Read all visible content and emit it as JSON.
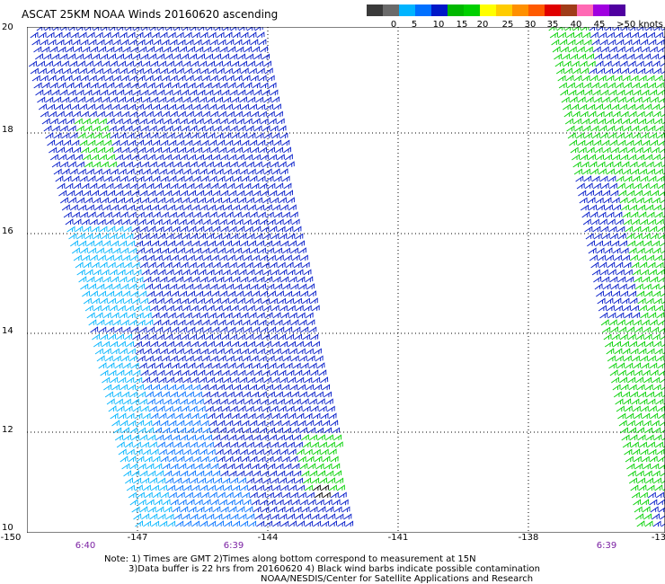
{
  "title": "ASCAT 25KM NOAA Winds 20160620 ascending",
  "colorbar": {
    "colors": [
      "#3a3a3a",
      "#6a6a6a",
      "#00b4ff",
      "#0070ff",
      "#0018c8",
      "#00b800",
      "#00d000",
      "#ffff00",
      "#ffcc00",
      "#ff9000",
      "#ff5a00",
      "#e00000",
      "#a03c18",
      "#ff69b4",
      "#a000e0",
      "#5000a0"
    ],
    "labels": [
      "0",
      "5",
      "10",
      "15",
      "20",
      "25",
      "30",
      "35",
      "40",
      "45",
      ">50 knots"
    ]
  },
  "axes": {
    "lat_labels": [
      "20",
      "18",
      "16",
      "14",
      "12",
      "10"
    ],
    "lon_labels": [
      "-150",
      "-147",
      "-144",
      "-141",
      "-138",
      "-13"
    ]
  },
  "pass_times": [
    "6:40",
    "6:39",
    "6:39"
  ],
  "notes": [
    "Note: 1) Times are GMT 2)Times along bottom correspond to measurement at 15N",
    "3)Data buffer is 22 hrs from 20160620 4) Black wind barbs indicate possible contamination",
    "NOAA/NESDIS/Center for Satellite Applications and Research"
  ],
  "barb_colors": {
    "navy": "#0018c8",
    "blue": "#0070ff",
    "cyan": "#00b4ff",
    "green": "#00d000",
    "black": "#000000"
  }
}
